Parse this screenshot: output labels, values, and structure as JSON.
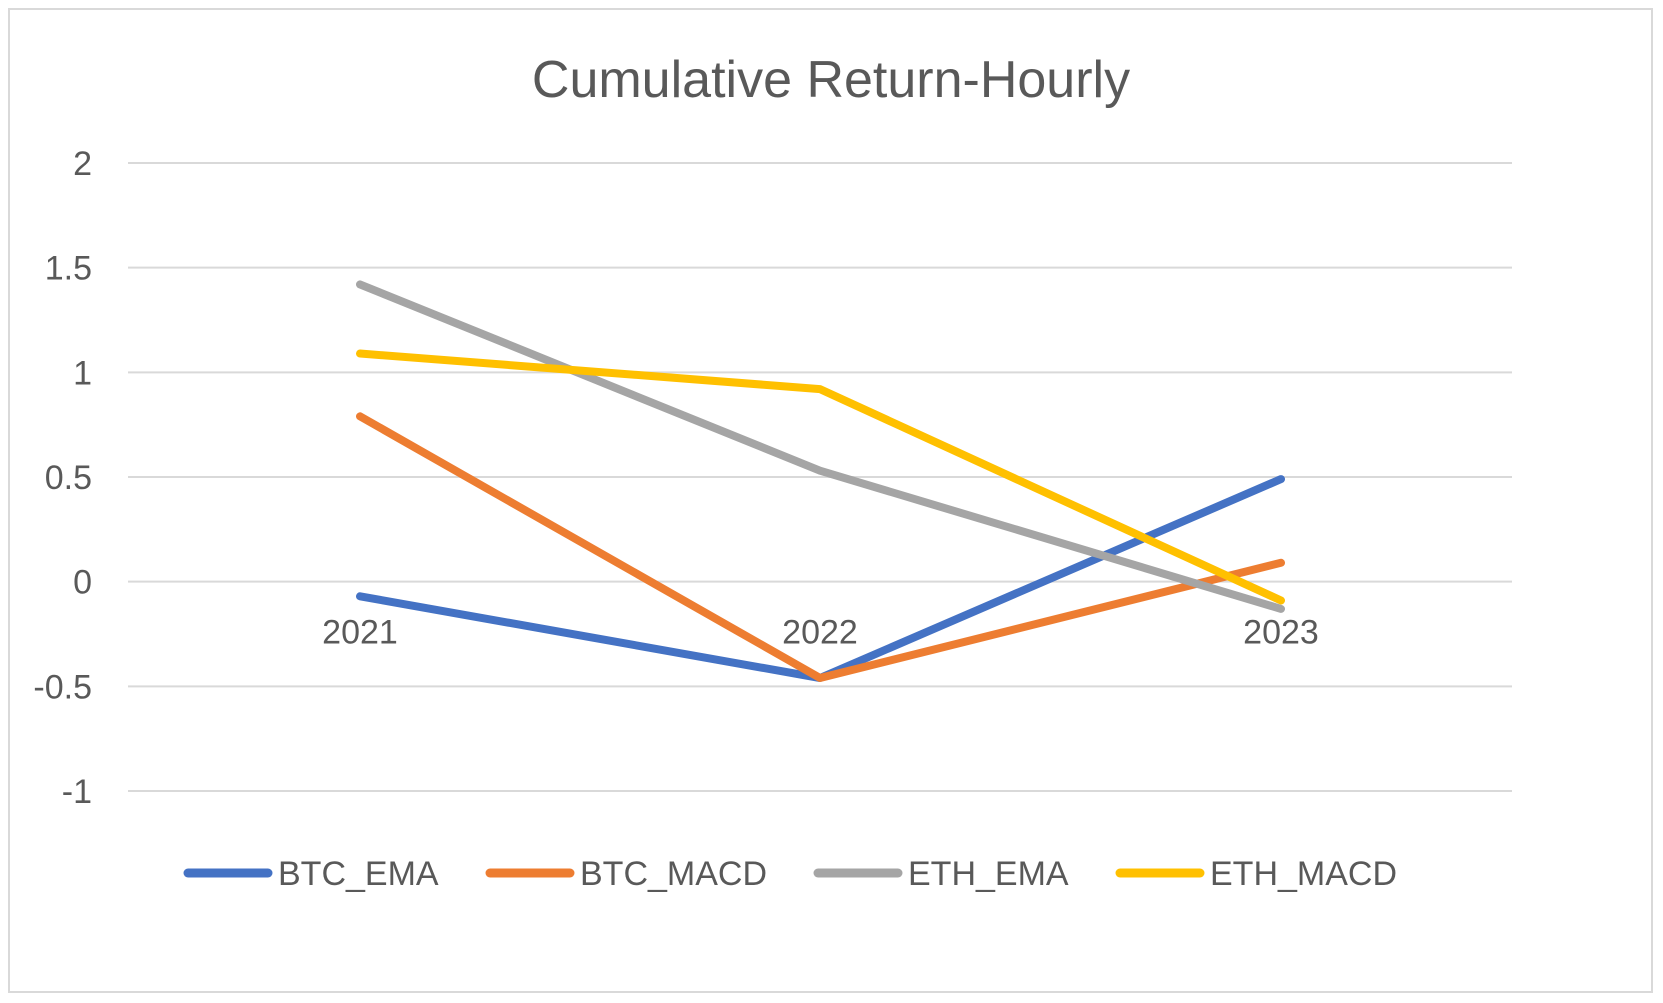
{
  "chart_data": {
    "type": "line",
    "title": "Cumulative Return-Hourly",
    "xlabel": "",
    "ylabel": "",
    "categories": [
      "2021",
      "2022",
      "2023"
    ],
    "yticks": [
      "2",
      "1.5",
      "1",
      "0.5",
      "0",
      "-0.5",
      "-1"
    ],
    "ylim": [
      -1,
      2
    ],
    "grid": true,
    "legend_position": "bottom",
    "series": [
      {
        "name": "BTC_EMA",
        "color": "#4472C4",
        "values": [
          -0.07,
          -0.46,
          0.49
        ]
      },
      {
        "name": "BTC_MACD",
        "color": "#ED7D31",
        "values": [
          0.79,
          -0.46,
          0.09
        ]
      },
      {
        "name": "ETH_EMA",
        "color": "#A5A5A5",
        "values": [
          1.42,
          0.53,
          -0.13
        ]
      },
      {
        "name": "ETH_MACD",
        "color": "#FFC000",
        "values": [
          1.09,
          0.92,
          -0.09
        ]
      }
    ]
  }
}
